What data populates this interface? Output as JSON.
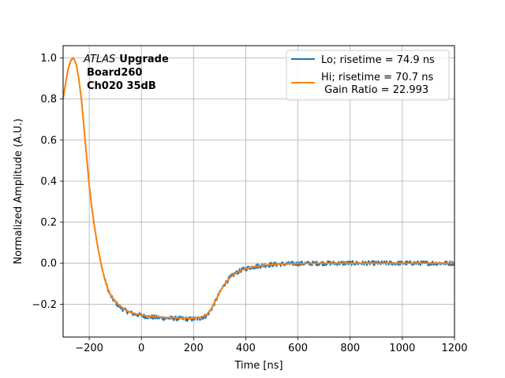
{
  "chart_data": {
    "type": "line",
    "title": "",
    "xlabel": "Time [ns]",
    "ylabel": "Normalized Amplitude (A.U.)",
    "xlim": [
      -300,
      1200
    ],
    "ylim": [
      -0.36,
      1.06
    ],
    "xticks": [
      -200,
      0,
      200,
      400,
      600,
      800,
      1000,
      1200
    ],
    "yticks": [
      -0.2,
      0.0,
      0.2,
      0.4,
      0.6,
      0.8,
      1.0
    ],
    "xtick_labels": [
      "−200",
      "0",
      "200",
      "400",
      "600",
      "800",
      "1000",
      "1200"
    ],
    "ytick_labels": [
      "−0.2",
      "0.0",
      "0.2",
      "0.4",
      "0.6",
      "0.8",
      "1.0"
    ],
    "grid": true,
    "legend_position": "top-right",
    "annotation": {
      "line1_italic": "ATLAS",
      "line1_bold": "Upgrade",
      "line2": "Board260",
      "line3": "Ch020 35dB"
    },
    "legend_entries": [
      "Lo; risetime = 74.9 ns",
      "Hi; risetime = 70.7 ns",
      " Gain Ratio = 22.993"
    ],
    "series": [
      {
        "name": "Lo; risetime = 74.9 ns",
        "color": "#1f77b4",
        "noisy": true,
        "x": [
          -300,
          -290,
          -280,
          -270,
          -260,
          -250,
          -240,
          -230,
          -220,
          -210,
          -200,
          -190,
          -180,
          -170,
          -160,
          -150,
          -140,
          -130,
          -120,
          -110,
          -100,
          -90,
          -80,
          -70,
          -60,
          -50,
          -40,
          -30,
          -20,
          -10,
          0,
          20,
          40,
          60,
          80,
          100,
          120,
          140,
          160,
          180,
          200,
          220,
          240,
          250,
          260,
          270,
          280,
          290,
          300,
          310,
          320,
          330,
          340,
          350,
          360,
          370,
          380,
          390,
          400,
          420,
          440,
          460,
          480,
          500,
          550,
          600,
          650,
          700,
          800,
          900,
          1000,
          1100,
          1200
        ],
        "y": [
          0.8,
          0.88,
          0.95,
          0.99,
          1.0,
          0.97,
          0.9,
          0.8,
          0.66,
          0.52,
          0.38,
          0.27,
          0.18,
          0.1,
          0.03,
          -0.03,
          -0.08,
          -0.12,
          -0.155,
          -0.175,
          -0.19,
          -0.205,
          -0.215,
          -0.225,
          -0.232,
          -0.238,
          -0.242,
          -0.246,
          -0.25,
          -0.252,
          -0.255,
          -0.26,
          -0.263,
          -0.265,
          -0.267,
          -0.268,
          -0.269,
          -0.27,
          -0.271,
          -0.272,
          -0.272,
          -0.27,
          -0.262,
          -0.255,
          -0.24,
          -0.22,
          -0.195,
          -0.17,
          -0.145,
          -0.12,
          -0.1,
          -0.085,
          -0.07,
          -0.06,
          -0.05,
          -0.042,
          -0.036,
          -0.031,
          -0.027,
          -0.02,
          -0.015,
          -0.012,
          -0.009,
          -0.007,
          -0.004,
          -0.002,
          -0.001,
          0.0,
          0.0,
          0.0,
          0.0,
          0.0,
          0.0
        ]
      },
      {
        "name": "Hi; risetime = 70.7 ns",
        "color": "#ff7f0e",
        "noisy": false,
        "x": [
          -300,
          -290,
          -280,
          -270,
          -260,
          -250,
          -240,
          -230,
          -220,
          -210,
          -200,
          -190,
          -180,
          -170,
          -160,
          -150,
          -140,
          -130,
          -120,
          -110,
          -100,
          -90,
          -80,
          -70,
          -60,
          -50,
          -40,
          -30,
          -20,
          -10,
          0,
          20,
          40,
          60,
          80,
          100,
          120,
          140,
          160,
          180,
          200,
          220,
          240,
          250,
          260,
          270,
          280,
          290,
          300,
          310,
          320,
          330,
          340,
          350,
          360,
          370,
          380,
          390,
          400,
          420,
          440,
          460,
          480,
          500,
          550,
          600,
          650,
          700,
          800,
          900,
          1000,
          1100,
          1200
        ],
        "y": [
          0.8,
          0.88,
          0.95,
          0.99,
          1.0,
          0.97,
          0.9,
          0.8,
          0.66,
          0.52,
          0.38,
          0.27,
          0.18,
          0.1,
          0.03,
          -0.03,
          -0.08,
          -0.12,
          -0.15,
          -0.17,
          -0.185,
          -0.2,
          -0.21,
          -0.22,
          -0.228,
          -0.235,
          -0.24,
          -0.244,
          -0.248,
          -0.25,
          -0.252,
          -0.257,
          -0.26,
          -0.262,
          -0.264,
          -0.265,
          -0.266,
          -0.267,
          -0.268,
          -0.268,
          -0.268,
          -0.265,
          -0.258,
          -0.25,
          -0.236,
          -0.217,
          -0.193,
          -0.168,
          -0.143,
          -0.12,
          -0.1,
          -0.085,
          -0.07,
          -0.06,
          -0.05,
          -0.042,
          -0.036,
          -0.031,
          -0.027,
          -0.02,
          -0.015,
          -0.012,
          -0.009,
          -0.007,
          -0.004,
          -0.002,
          -0.001,
          0.0,
          0.0,
          0.0,
          0.0,
          0.0,
          0.0
        ]
      }
    ]
  }
}
